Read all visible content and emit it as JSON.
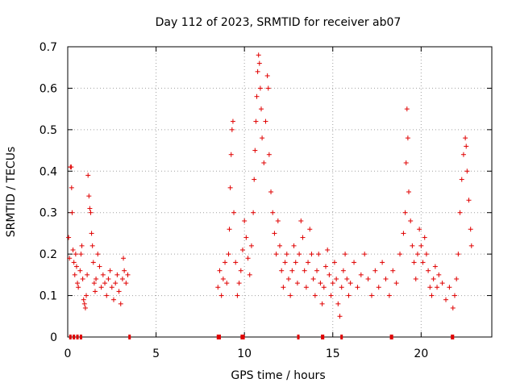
{
  "chart_data": {
    "type": "scatter",
    "title": "Day 112 of 2023, SRMTID for receiver ab07",
    "xlabel": "GPS time / hours",
    "ylabel": "SRMTID / TECUs",
    "xlim": [
      0,
      24
    ],
    "ylim": [
      0,
      0.7
    ],
    "xticks": [
      0,
      5,
      10,
      15,
      20
    ],
    "yticks": [
      0,
      0.1,
      0.2,
      0.3,
      0.4,
      0.5,
      0.6,
      0.7
    ],
    "ytick_labels": [
      "0",
      "0.1",
      "0.2",
      "0.3",
      "0.4",
      "0.5",
      "0.6",
      "0.7"
    ],
    "grid": true,
    "marker": "+",
    "color": "#e00000",
    "series": [
      {
        "name": "SRMTID",
        "points": [
          [
            0.05,
            0.24
          ],
          [
            0.1,
            0.19
          ],
          [
            0.15,
            0.41
          ],
          [
            0.2,
            0.41
          ],
          [
            0.22,
            0.36
          ],
          [
            0.25,
            0.3
          ],
          [
            0.3,
            0.21
          ],
          [
            0.35,
            0.18
          ],
          [
            0.4,
            0.15
          ],
          [
            0.45,
            0.2
          ],
          [
            0.5,
            0.17
          ],
          [
            0.55,
            0.13
          ],
          [
            0.6,
            0.12
          ],
          [
            0.7,
            0.16
          ],
          [
            0.75,
            0.2
          ],
          [
            0.8,
            0.22
          ],
          [
            0.85,
            0.14
          ],
          [
            0.9,
            0.09
          ],
          [
            0.95,
            0.08
          ],
          [
            1.0,
            0.07
          ],
          [
            1.05,
            0.1
          ],
          [
            1.1,
            0.15
          ],
          [
            1.15,
            0.39
          ],
          [
            1.2,
            0.34
          ],
          [
            1.25,
            0.31
          ],
          [
            1.3,
            0.3
          ],
          [
            1.35,
            0.25
          ],
          [
            1.4,
            0.22
          ],
          [
            1.45,
            0.18
          ],
          [
            1.5,
            0.13
          ],
          [
            1.55,
            0.11
          ],
          [
            1.6,
            0.14
          ],
          [
            1.7,
            0.2
          ],
          [
            1.8,
            0.17
          ],
          [
            1.9,
            0.12
          ],
          [
            2.0,
            0.15
          ],
          [
            2.1,
            0.13
          ],
          [
            2.2,
            0.1
          ],
          [
            2.3,
            0.14
          ],
          [
            2.4,
            0.16
          ],
          [
            2.5,
            0.12
          ],
          [
            2.6,
            0.09
          ],
          [
            2.7,
            0.13
          ],
          [
            2.8,
            0.15
          ],
          [
            2.9,
            0.11
          ],
          [
            3.0,
            0.08
          ],
          [
            3.1,
            0.14
          ],
          [
            3.15,
            0.19
          ],
          [
            3.2,
            0.16
          ],
          [
            3.3,
            0.13
          ],
          [
            3.4,
            0.15
          ],
          [
            8.5,
            0.12
          ],
          [
            8.6,
            0.16
          ],
          [
            8.7,
            0.1
          ],
          [
            8.8,
            0.14
          ],
          [
            8.9,
            0.18
          ],
          [
            9.0,
            0.13
          ],
          [
            9.1,
            0.2
          ],
          [
            9.15,
            0.26
          ],
          [
            9.2,
            0.36
          ],
          [
            9.25,
            0.44
          ],
          [
            9.3,
            0.5
          ],
          [
            9.35,
            0.52
          ],
          [
            9.4,
            0.3
          ],
          [
            9.5,
            0.18
          ],
          [
            9.6,
            0.1
          ],
          [
            9.7,
            0.13
          ],
          [
            9.8,
            0.16
          ],
          [
            9.9,
            0.21
          ],
          [
            10.0,
            0.28
          ],
          [
            10.1,
            0.24
          ],
          [
            10.2,
            0.19
          ],
          [
            10.3,
            0.15
          ],
          [
            10.4,
            0.22
          ],
          [
            10.5,
            0.3
          ],
          [
            10.55,
            0.38
          ],
          [
            10.6,
            0.45
          ],
          [
            10.65,
            0.52
          ],
          [
            10.7,
            0.58
          ],
          [
            10.75,
            0.64
          ],
          [
            10.8,
            0.68
          ],
          [
            10.85,
            0.66
          ],
          [
            10.9,
            0.6
          ],
          [
            10.95,
            0.55
          ],
          [
            11.0,
            0.48
          ],
          [
            11.1,
            0.42
          ],
          [
            11.2,
            0.52
          ],
          [
            11.3,
            0.63
          ],
          [
            11.35,
            0.6
          ],
          [
            11.4,
            0.44
          ],
          [
            11.5,
            0.35
          ],
          [
            11.6,
            0.3
          ],
          [
            11.7,
            0.25
          ],
          [
            11.8,
            0.2
          ],
          [
            11.9,
            0.28
          ],
          [
            12.0,
            0.22
          ],
          [
            12.1,
            0.16
          ],
          [
            12.2,
            0.12
          ],
          [
            12.3,
            0.18
          ],
          [
            12.4,
            0.2
          ],
          [
            12.5,
            0.14
          ],
          [
            12.6,
            0.1
          ],
          [
            12.7,
            0.16
          ],
          [
            12.8,
            0.22
          ],
          [
            12.9,
            0.18
          ],
          [
            13.0,
            0.13
          ],
          [
            13.1,
            0.2
          ],
          [
            13.2,
            0.28
          ],
          [
            13.3,
            0.24
          ],
          [
            13.4,
            0.16
          ],
          [
            13.5,
            0.12
          ],
          [
            13.6,
            0.18
          ],
          [
            13.7,
            0.26
          ],
          [
            13.8,
            0.2
          ],
          [
            13.9,
            0.14
          ],
          [
            14.0,
            0.1
          ],
          [
            14.1,
            0.16
          ],
          [
            14.2,
            0.2
          ],
          [
            14.3,
            0.13
          ],
          [
            14.4,
            0.08
          ],
          [
            14.5,
            0.12
          ],
          [
            14.6,
            0.17
          ],
          [
            14.7,
            0.21
          ],
          [
            14.8,
            0.15
          ],
          [
            14.9,
            0.1
          ],
          [
            15.0,
            0.13
          ],
          [
            15.1,
            0.18
          ],
          [
            15.2,
            0.14
          ],
          [
            15.3,
            0.08
          ],
          [
            15.4,
            0.05
          ],
          [
            15.5,
            0.12
          ],
          [
            15.6,
            0.16
          ],
          [
            15.7,
            0.2
          ],
          [
            15.8,
            0.14
          ],
          [
            15.9,
            0.1
          ],
          [
            16.0,
            0.13
          ],
          [
            16.2,
            0.18
          ],
          [
            16.4,
            0.12
          ],
          [
            16.6,
            0.15
          ],
          [
            16.8,
            0.2
          ],
          [
            17.0,
            0.14
          ],
          [
            17.2,
            0.1
          ],
          [
            17.4,
            0.16
          ],
          [
            17.6,
            0.12
          ],
          [
            17.8,
            0.18
          ],
          [
            18.0,
            0.14
          ],
          [
            18.2,
            0.1
          ],
          [
            18.4,
            0.16
          ],
          [
            18.6,
            0.13
          ],
          [
            18.8,
            0.2
          ],
          [
            19.0,
            0.25
          ],
          [
            19.1,
            0.3
          ],
          [
            19.15,
            0.42
          ],
          [
            19.2,
            0.55
          ],
          [
            19.25,
            0.48
          ],
          [
            19.3,
            0.35
          ],
          [
            19.4,
            0.28
          ],
          [
            19.5,
            0.22
          ],
          [
            19.6,
            0.18
          ],
          [
            19.7,
            0.14
          ],
          [
            19.8,
            0.2
          ],
          [
            19.9,
            0.26
          ],
          [
            20.0,
            0.22
          ],
          [
            20.1,
            0.18
          ],
          [
            20.2,
            0.24
          ],
          [
            20.3,
            0.2
          ],
          [
            20.4,
            0.16
          ],
          [
            20.5,
            0.12
          ],
          [
            20.6,
            0.1
          ],
          [
            20.7,
            0.14
          ],
          [
            20.8,
            0.17
          ],
          [
            20.9,
            0.12
          ],
          [
            21.0,
            0.15
          ],
          [
            21.2,
            0.13
          ],
          [
            21.4,
            0.09
          ],
          [
            21.6,
            0.12
          ],
          [
            21.8,
            0.07
          ],
          [
            21.9,
            0.1
          ],
          [
            22.0,
            0.14
          ],
          [
            22.1,
            0.2
          ],
          [
            22.2,
            0.3
          ],
          [
            22.3,
            0.38
          ],
          [
            22.4,
            0.44
          ],
          [
            22.5,
            0.48
          ],
          [
            22.55,
            0.46
          ],
          [
            22.6,
            0.4
          ],
          [
            22.7,
            0.33
          ],
          [
            22.8,
            0.26
          ],
          [
            22.85,
            0.22
          ]
        ]
      }
    ],
    "baseline_markers_x": [
      0.15,
      0.35,
      0.55,
      0.75,
      3.5,
      8.5,
      8.55,
      8.6,
      9.85,
      9.9,
      9.95,
      13.05,
      14.4,
      14.45,
      15.5,
      18.3,
      18.35,
      21.75,
      21.8
    ]
  }
}
